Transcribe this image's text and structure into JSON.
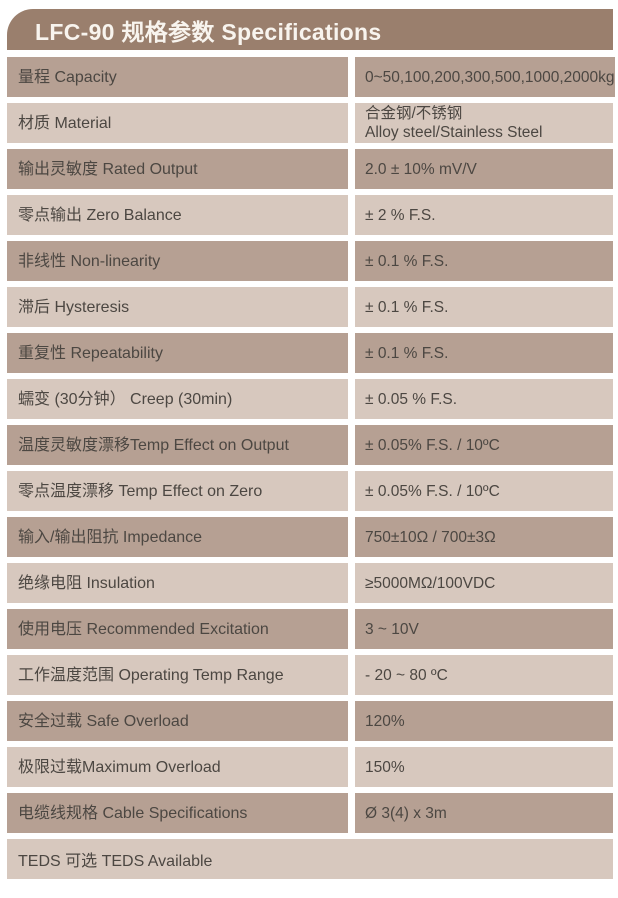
{
  "header": {
    "title": "LFC-90 规格参数 Specifications"
  },
  "colors": {
    "header_background": "#9a7f6d",
    "header_text": "#f8f4ee",
    "row_dark": "#b6a093",
    "row_light": "#d7c8be",
    "text": "#4c4742",
    "page_background": "#ffffff"
  },
  "table": {
    "rows": [
      {
        "label": "量程 Capacity",
        "value": "0~50,100,200,300,500,1000,2000kg"
      },
      {
        "label": "材质 Material",
        "value": "合金钢/不锈钢\nAlloy steel/Stainless Steel"
      },
      {
        "label": "输出灵敏度 Rated Output",
        "value": "2.0 ± 10% mV/V"
      },
      {
        "label": "零点输出  Zero Balance",
        "value": "± 2 % F.S."
      },
      {
        "label": "非线性 Non-linearity",
        "value": "± 0.1 % F.S."
      },
      {
        "label": "滞后 Hysteresis",
        "value": "± 0.1 % F.S."
      },
      {
        "label": "重复性 Repeatability",
        "value": "± 0.1 % F.S."
      },
      {
        "label": "蠕变 (30分钟） Creep (30min)",
        "value": "± 0.05 % F.S."
      },
      {
        "label": "温度灵敏度漂移Temp Effect on Output",
        "value": "± 0.05% F.S. / 10ºC"
      },
      {
        "label": "零点温度漂移 Temp Effect on Zero",
        "value": "± 0.05% F.S. / 10ºC"
      },
      {
        "label": "输入/输出阻抗 Impedance",
        "value": "750±10Ω / 700±3Ω"
      },
      {
        "label": "绝缘电阻  Insulation",
        "value": "≥5000MΩ/100VDC"
      },
      {
        "label": "使用电压 Recommended Excitation",
        "value": "3 ~ 10V"
      },
      {
        "label": "工作温度范围 Operating Temp  Range",
        "value": "- 20 ~ 80 ºC"
      },
      {
        "label": "安全过载 Safe Overload",
        "value": "120%"
      },
      {
        "label": "极限过载Maximum Overload",
        "value": "150%"
      },
      {
        "label": "电缆线规格 Cable Specifications",
        "value": "Ø 3(4) x 3m"
      }
    ],
    "footer_row": {
      "label": "TEDS 可选 TEDS Available"
    }
  }
}
